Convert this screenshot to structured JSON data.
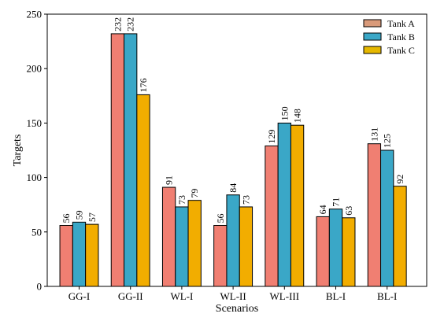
{
  "chart_data": {
    "type": "bar",
    "title": "",
    "xlabel": "Scenarios",
    "ylabel": "Targets",
    "ylim": [
      0,
      250
    ],
    "yticks": [
      0,
      50,
      100,
      150,
      200,
      250
    ],
    "categories": [
      "GG-I",
      "GG-II",
      "WL-I",
      "WL-II",
      "WL-III",
      "BL-I",
      "BL-I"
    ],
    "series": [
      {
        "name": "Tank A",
        "color": "#f07f72",
        "values": [
          56,
          232,
          91,
          56,
          129,
          64,
          131
        ]
      },
      {
        "name": "Tank B",
        "color": "#3aa7c7",
        "values": [
          59,
          232,
          73,
          84,
          150,
          71,
          125
        ]
      },
      {
        "name": "Tank C",
        "color": "#f2ad00",
        "values": [
          57,
          176,
          79,
          73,
          148,
          63,
          92
        ]
      }
    ],
    "legend": {
      "position": "top-right",
      "swatch_colors": [
        "#d99a7a",
        "#3aa7c7",
        "#e6b800"
      ]
    },
    "grid": false,
    "data_labels": true
  }
}
